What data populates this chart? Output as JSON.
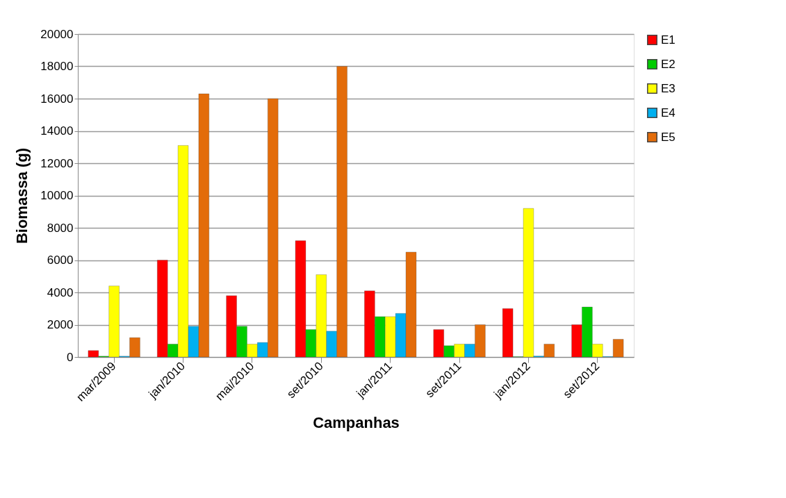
{
  "chart_data": {
    "type": "bar",
    "xlabel": "Campanhas",
    "ylabel": "Biomassa (g)",
    "categories": [
      "mar/2009",
      "jan/2010",
      "mai/2010",
      "set/2010",
      "jan/2011",
      "set/2011",
      "jan/2012",
      "set/2012"
    ],
    "series": [
      {
        "name": "E1",
        "color": "#ff0000",
        "values": [
          400,
          6000,
          3800,
          7200,
          4100,
          1700,
          3000,
          2000
        ]
      },
      {
        "name": "E2",
        "color": "#00cc00",
        "values": [
          50,
          800,
          1900,
          1700,
          2500,
          700,
          20,
          3100
        ]
      },
      {
        "name": "E3",
        "color": "#ffff00",
        "values": [
          4400,
          13100,
          800,
          5100,
          2500,
          800,
          9200,
          800
        ]
      },
      {
        "name": "E4",
        "color": "#00b0f0",
        "values": [
          50,
          1900,
          900,
          1600,
          2700,
          800,
          60,
          30
        ]
      },
      {
        "name": "E5",
        "color": "#e36c0a",
        "values": [
          1200,
          16300,
          16000,
          18000,
          6500,
          2000,
          800,
          1100
        ]
      }
    ],
    "ylim": [
      0,
      20000
    ],
    "yticks": [
      0,
      2000,
      4000,
      6000,
      8000,
      10000,
      12000,
      14000,
      16000,
      18000,
      20000
    ],
    "grid": "y",
    "legend": "right"
  }
}
